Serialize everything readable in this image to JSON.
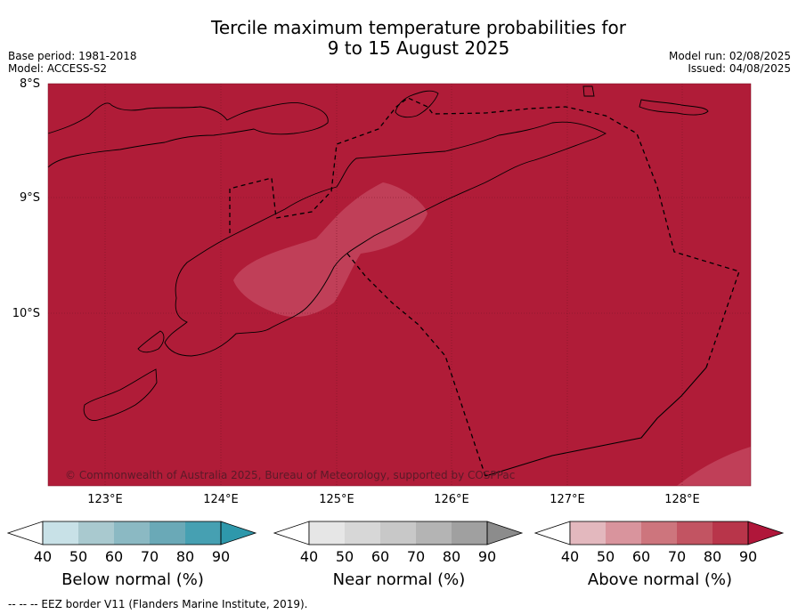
{
  "title_line1": "Tercile maximum temperature probabilities for",
  "title_line2": "9 to 15 August 2025",
  "meta": {
    "base_period": "Base period: 1981-2018",
    "model": "Model: ACCESS-S2",
    "model_run": "Model run: 02/08/2025",
    "issued": "Issued: 04/08/2025"
  },
  "axes": {
    "lat_labels": [
      "8°S",
      "9°S",
      "10°S"
    ],
    "lon_labels": [
      "123°E",
      "124°E",
      "125°E",
      "126°E",
      "127°E",
      "128°E"
    ]
  },
  "copyright": "© Commonwealth of Australia 2025, Bureau of Meteorology, supported by COSPPac",
  "colors": {
    "ocean_fill": "#b01c38",
    "lighter_patch": "#c03f58",
    "coastline": "#000000"
  },
  "legends": [
    {
      "title": "Below normal (%)",
      "ticks": [
        "40",
        "50",
        "60",
        "70",
        "80",
        "90"
      ],
      "colors": [
        "#ffffff",
        "#c8e1e7",
        "#a9c9cf",
        "#8bb9c3",
        "#6aa9b7",
        "#46a0b2",
        "#2e98ab"
      ]
    },
    {
      "title": "Near normal (%)",
      "ticks": [
        "40",
        "50",
        "60",
        "70",
        "80",
        "90"
      ],
      "colors": [
        "#ffffff",
        "#e6e6e6",
        "#d7d7d7",
        "#c8c8c8",
        "#b4b4b4",
        "#a0a0a0",
        "#8c8c8c"
      ]
    },
    {
      "title": "Above normal (%)",
      "ticks": [
        "40",
        "50",
        "60",
        "70",
        "80",
        "90"
      ],
      "colors": [
        "#ffffff",
        "#e3b8be",
        "#d9949d",
        "#cd757d",
        "#c25462",
        "#b8354a",
        "#b0163a"
      ]
    }
  ],
  "footnote": "--  --  -- EEZ border V11 (Flanders Marine Institute, 2019)."
}
